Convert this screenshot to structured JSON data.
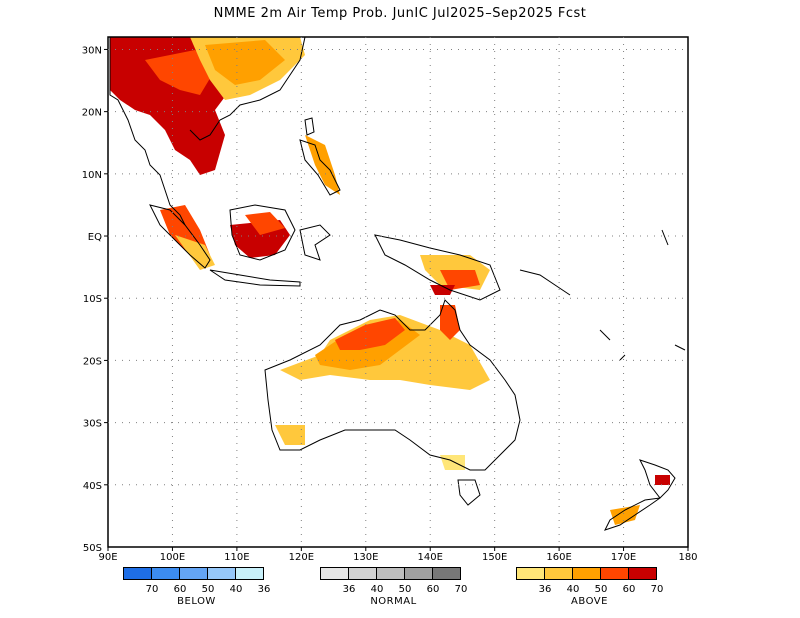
{
  "title": "NMME 2m Air Temp Prob. JunIC  Jul2025–Sep2025 Fcst",
  "lat_labels": [
    "30N",
    "20N",
    "10N",
    "EQ",
    "10S",
    "20S",
    "30S",
    "40S",
    "50S"
  ],
  "lon_labels": [
    "90E",
    "100E",
    "110E",
    "120E",
    "130E",
    "140E",
    "150E",
    "160E",
    "170E",
    "180"
  ],
  "map_extent": {
    "lon_min": 90,
    "lon_max": 180,
    "lat_min": -50,
    "lat_max": 32
  },
  "legends": {
    "below": {
      "name": "BELOW",
      "colors": [
        "#1e6ee6",
        "#3c8cf0",
        "#64a5f5",
        "#96c8fa",
        "#c8f0fa"
      ],
      "ticks": [
        "70",
        "60",
        "50",
        "40",
        "36"
      ]
    },
    "normal": {
      "name": "NORMAL",
      "colors": [
        "#e6e6e6",
        "#d2d2d2",
        "#bebebe",
        "#a0a0a0",
        "#787878"
      ],
      "ticks": [
        "36",
        "40",
        "50",
        "60",
        "70"
      ]
    },
    "above": {
      "name": "ABOVE",
      "colors": [
        "#ffe678",
        "#ffc83c",
        "#ffa000",
        "#ff4600",
        "#c80000"
      ],
      "ticks": [
        "36",
        "40",
        "50",
        "60",
        "70"
      ]
    }
  }
}
